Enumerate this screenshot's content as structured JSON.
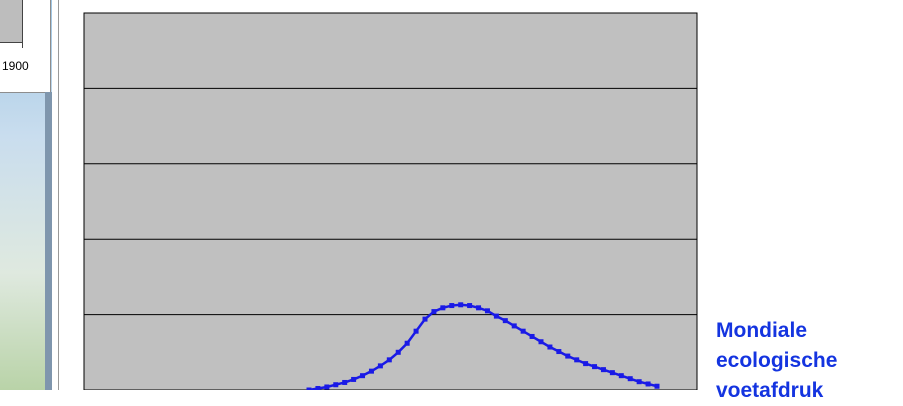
{
  "background_window": {
    "axis_label": "1900"
  },
  "caption": {
    "lines": [
      "Mondiale",
      "ecologische",
      "voetafdruk"
    ]
  },
  "colors": {
    "series": "#1a1ae6",
    "plot_bg": "#c0c0c0",
    "caption": "#1434e0"
  },
  "chart_data": {
    "type": "line",
    "title": "",
    "xlabel": "",
    "ylabel": "",
    "grid": true,
    "x": [
      0,
      1,
      2,
      3,
      4,
      5,
      6,
      7,
      8,
      9,
      10,
      11,
      12,
      13,
      14,
      15,
      16,
      17,
      18,
      19,
      20,
      21,
      22,
      23,
      24,
      25,
      26,
      27,
      28,
      29,
      30,
      31,
      32,
      33,
      34,
      35,
      36,
      37,
      38,
      39
    ],
    "series": [
      {
        "name": "",
        "values": [
          0.0,
          0.02,
          0.04,
          0.07,
          0.1,
          0.14,
          0.19,
          0.25,
          0.32,
          0.4,
          0.5,
          0.62,
          0.78,
          0.94,
          1.04,
          1.09,
          1.12,
          1.13,
          1.12,
          1.09,
          1.05,
          0.98,
          0.92,
          0.85,
          0.78,
          0.71,
          0.64,
          0.57,
          0.51,
          0.45,
          0.4,
          0.35,
          0.31,
          0.27,
          0.23,
          0.19,
          0.15,
          0.11,
          0.08,
          0.05
        ]
      }
    ],
    "ylim": [
      0,
      5
    ]
  }
}
